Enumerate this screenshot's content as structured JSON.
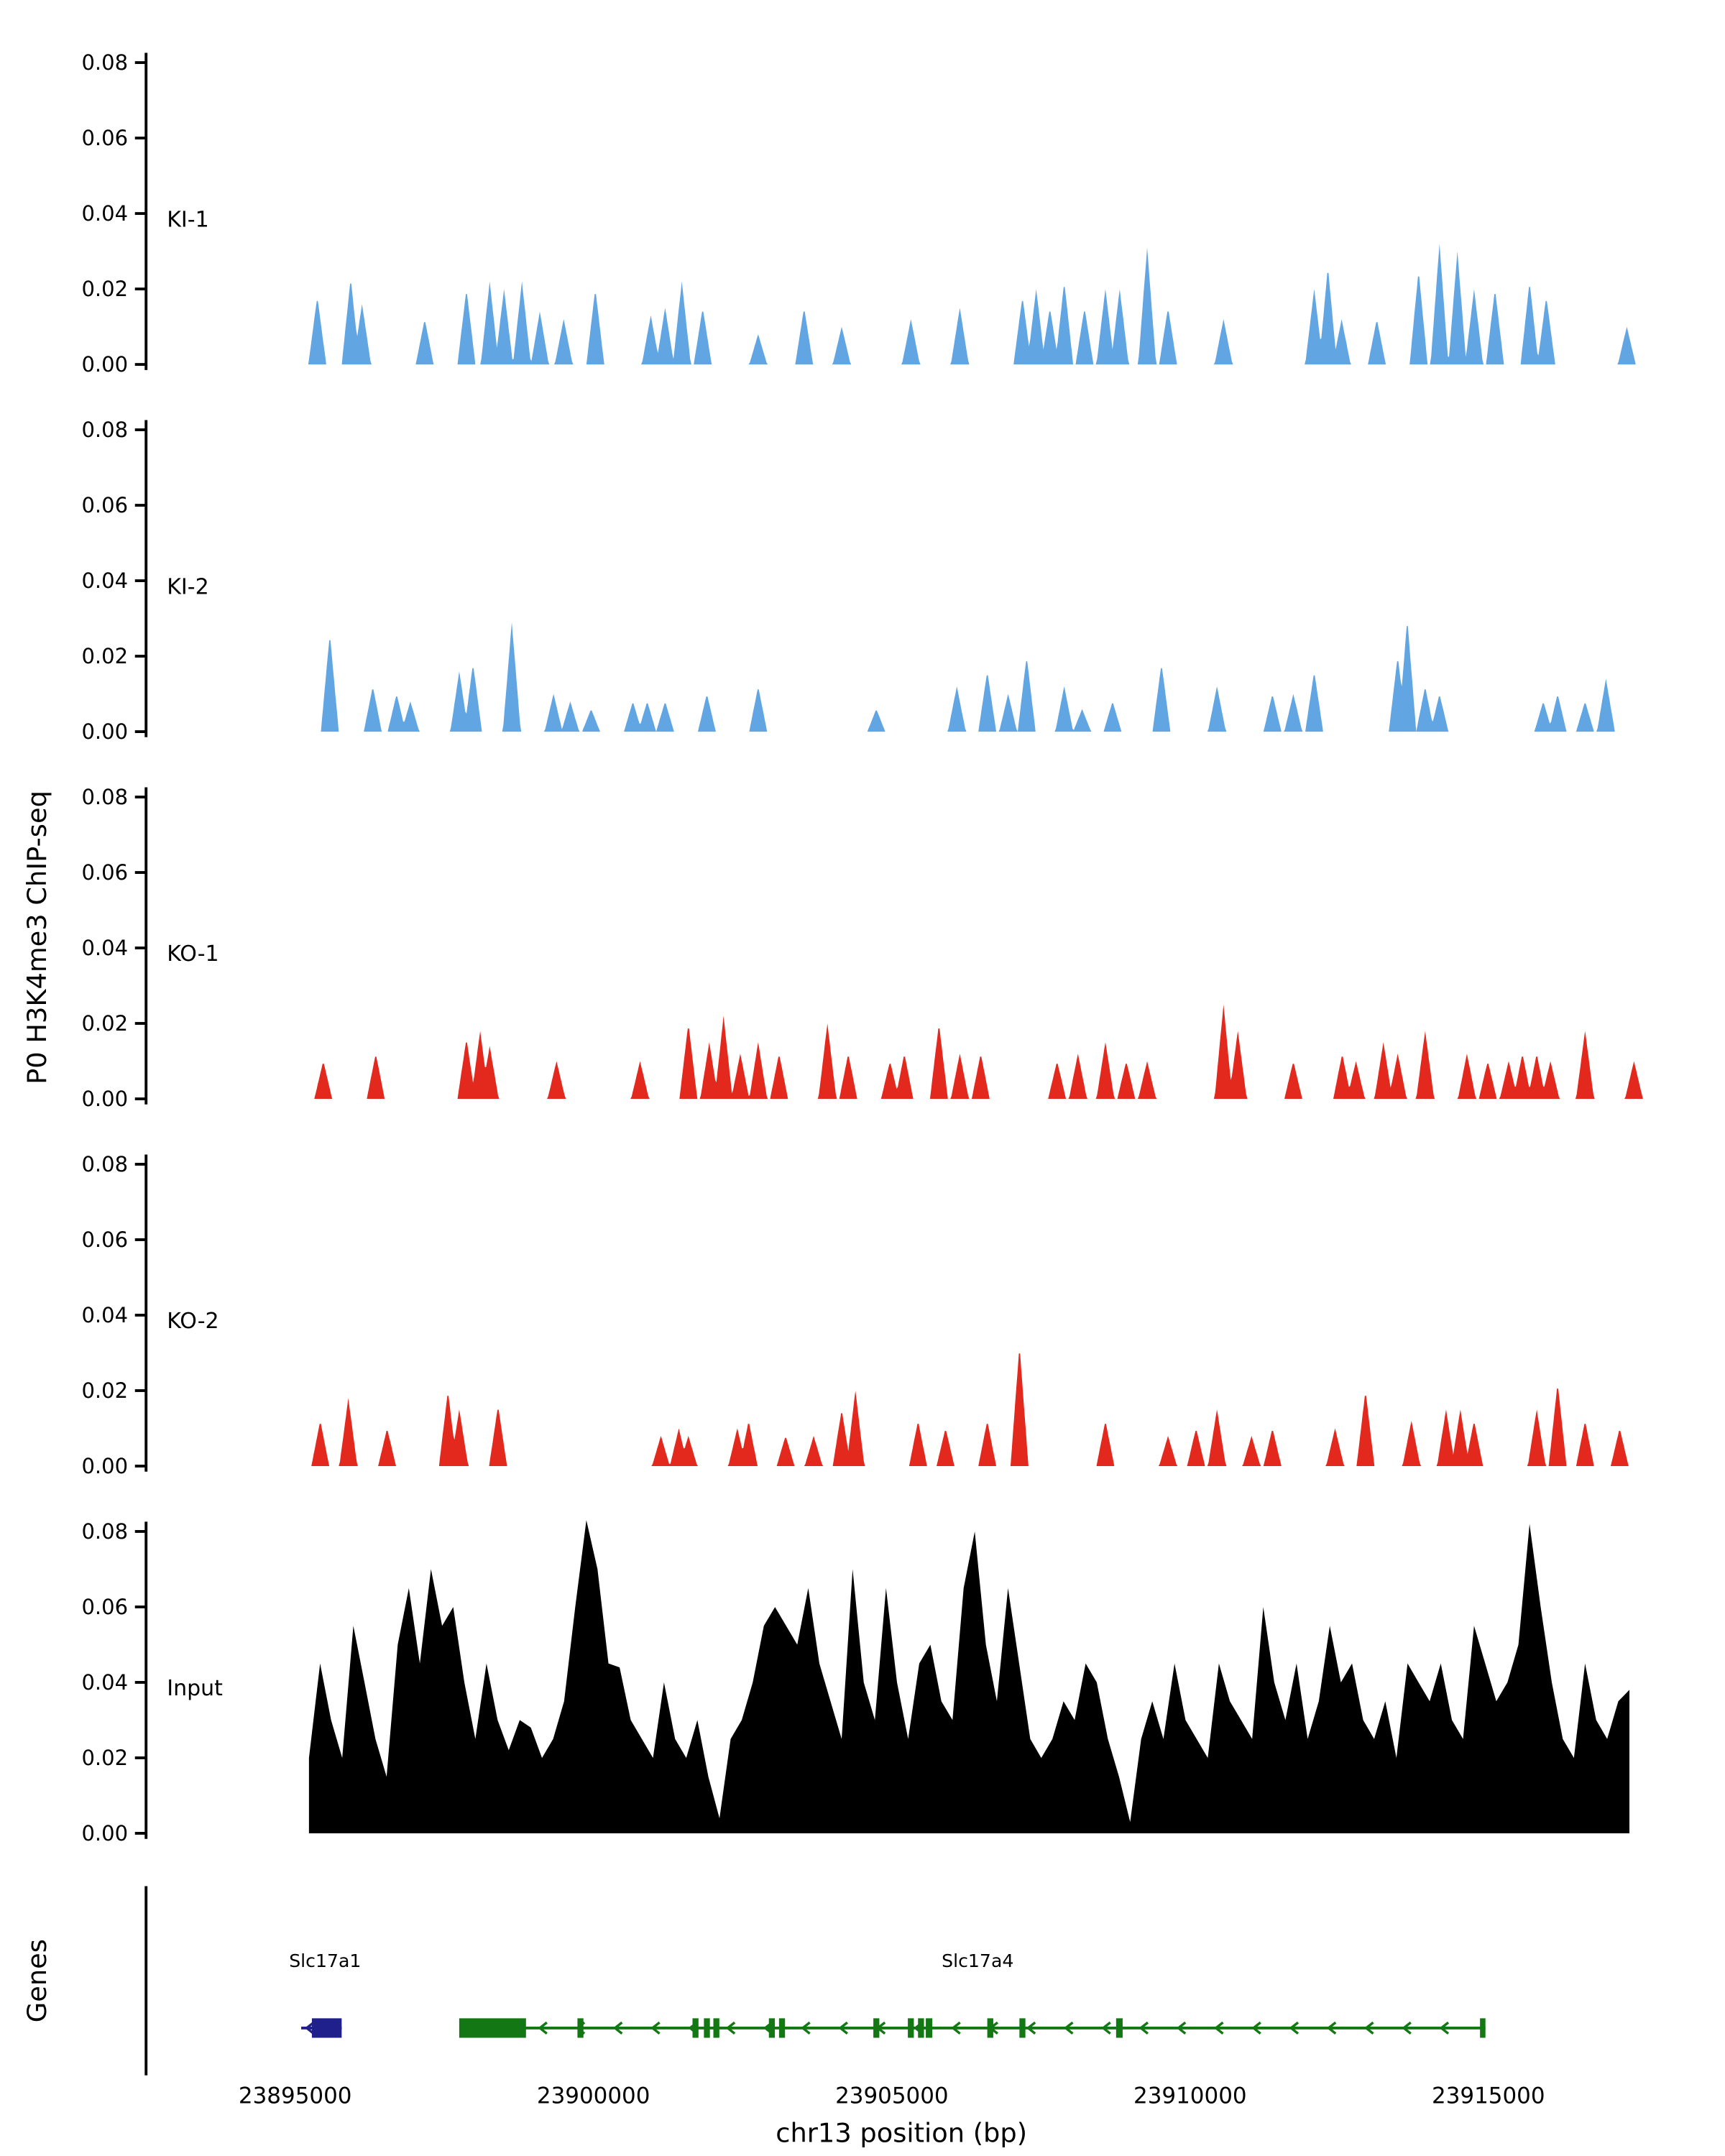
{
  "figure": {
    "y_axis_title": "P0 H3K4me3 ChIP-seq",
    "genes_axis_title": "Genes",
    "x_axis_title": "chr13 position (bp)"
  },
  "chart_data": {
    "type": "area",
    "xlim": [
      23892500,
      23917800
    ],
    "ylim": [
      0,
      0.085
    ],
    "y_ticks": [
      0,
      0.02,
      0.04,
      0.06,
      0.08
    ],
    "x_ticks": [
      23895000,
      23900000,
      23905000,
      23910000,
      23915000
    ],
    "tracks": [
      {
        "label": "KI-1",
        "color": "#61A5E3",
        "kind": "peaks",
        "peak_halfwidth_bp": 150,
        "peaks": [
          [
            23895370,
            0.018
          ],
          [
            23895930,
            0.023
          ],
          [
            23896120,
            0.016
          ],
          [
            23897170,
            0.012
          ],
          [
            23897870,
            0.02
          ],
          [
            23898260,
            0.022
          ],
          [
            23898500,
            0.02
          ],
          [
            23898800,
            0.022
          ],
          [
            23899100,
            0.014
          ],
          [
            23899500,
            0.012
          ],
          [
            23900030,
            0.02
          ],
          [
            23900960,
            0.013
          ],
          [
            23901200,
            0.015
          ],
          [
            23901480,
            0.022
          ],
          [
            23901830,
            0.015
          ],
          [
            23902760,
            0.008
          ],
          [
            23903530,
            0.015
          ],
          [
            23904160,
            0.01
          ],
          [
            23905320,
            0.012
          ],
          [
            23906140,
            0.015
          ],
          [
            23907190,
            0.018
          ],
          [
            23907420,
            0.02
          ],
          [
            23907650,
            0.015
          ],
          [
            23907890,
            0.022
          ],
          [
            23908230,
            0.015
          ],
          [
            23908580,
            0.02
          ],
          [
            23908820,
            0.02
          ],
          [
            23909280,
            0.031
          ],
          [
            23909630,
            0.015
          ],
          [
            23910560,
            0.012
          ],
          [
            23912080,
            0.02
          ],
          [
            23912310,
            0.026
          ],
          [
            23912540,
            0.012
          ],
          [
            23913130,
            0.012
          ],
          [
            23913830,
            0.025
          ],
          [
            23914180,
            0.032
          ],
          [
            23914480,
            0.03
          ],
          [
            23914760,
            0.02
          ],
          [
            23915110,
            0.02
          ],
          [
            23915690,
            0.022
          ],
          [
            23915970,
            0.018
          ],
          [
            23917320,
            0.01
          ]
        ]
      },
      {
        "label": "KI-2",
        "color": "#61A5E3",
        "kind": "peaks",
        "peak_halfwidth_bp": 150,
        "peaks": [
          [
            23895580,
            0.026
          ],
          [
            23896300,
            0.012
          ],
          [
            23896700,
            0.01
          ],
          [
            23896930,
            0.008
          ],
          [
            23897750,
            0.016
          ],
          [
            23897980,
            0.018
          ],
          [
            23898630,
            0.029
          ],
          [
            23899330,
            0.01
          ],
          [
            23899610,
            0.008
          ],
          [
            23899960,
            0.006
          ],
          [
            23900660,
            0.008
          ],
          [
            23900900,
            0.008
          ],
          [
            23901200,
            0.008
          ],
          [
            23901900,
            0.01
          ],
          [
            23902760,
            0.012
          ],
          [
            23904740,
            0.006
          ],
          [
            23906090,
            0.012
          ],
          [
            23906600,
            0.016
          ],
          [
            23906950,
            0.01
          ],
          [
            23907260,
            0.02
          ],
          [
            23907890,
            0.012
          ],
          [
            23908190,
            0.006
          ],
          [
            23908700,
            0.008
          ],
          [
            23909520,
            0.018
          ],
          [
            23910450,
            0.012
          ],
          [
            23911380,
            0.01
          ],
          [
            23911730,
            0.01
          ],
          [
            23912080,
            0.016
          ],
          [
            23913480,
            0.02
          ],
          [
            23913640,
            0.03
          ],
          [
            23913940,
            0.012
          ],
          [
            23914180,
            0.01
          ],
          [
            23915920,
            0.008
          ],
          [
            23916160,
            0.01
          ],
          [
            23916620,
            0.008
          ],
          [
            23916970,
            0.014
          ]
        ]
      },
      {
        "label": "KO-1",
        "color": "#E3281E",
        "kind": "peaks",
        "peak_halfwidth_bp": 150,
        "peaks": [
          [
            23895470,
            0.01
          ],
          [
            23896350,
            0.012
          ],
          [
            23897870,
            0.016
          ],
          [
            23898100,
            0.018
          ],
          [
            23898260,
            0.014
          ],
          [
            23899380,
            0.01
          ],
          [
            23900780,
            0.01
          ],
          [
            23901590,
            0.02
          ],
          [
            23901940,
            0.015
          ],
          [
            23902180,
            0.022
          ],
          [
            23902460,
            0.012
          ],
          [
            23902760,
            0.015
          ],
          [
            23903110,
            0.012
          ],
          [
            23903920,
            0.02
          ],
          [
            23904270,
            0.012
          ],
          [
            23904970,
            0.01
          ],
          [
            23905210,
            0.012
          ],
          [
            23905790,
            0.02
          ],
          [
            23906140,
            0.012
          ],
          [
            23906490,
            0.012
          ],
          [
            23907770,
            0.01
          ],
          [
            23908120,
            0.012
          ],
          [
            23908580,
            0.015
          ],
          [
            23908930,
            0.01
          ],
          [
            23909280,
            0.01
          ],
          [
            23910560,
            0.025
          ],
          [
            23910800,
            0.018
          ],
          [
            23911730,
            0.01
          ],
          [
            23912550,
            0.012
          ],
          [
            23912780,
            0.01
          ],
          [
            23913240,
            0.015
          ],
          [
            23913480,
            0.012
          ],
          [
            23913940,
            0.018
          ],
          [
            23914640,
            0.012
          ],
          [
            23914990,
            0.01
          ],
          [
            23915340,
            0.01
          ],
          [
            23915570,
            0.012
          ],
          [
            23915810,
            0.012
          ],
          [
            23916040,
            0.01
          ],
          [
            23916620,
            0.018
          ],
          [
            23917440,
            0.01
          ]
        ]
      },
      {
        "label": "KO-2",
        "color": "#E3281E",
        "kind": "peaks",
        "peak_halfwidth_bp": 150,
        "peaks": [
          [
            23895420,
            0.012
          ],
          [
            23895890,
            0.018
          ],
          [
            23896540,
            0.01
          ],
          [
            23897560,
            0.02
          ],
          [
            23897750,
            0.015
          ],
          [
            23898400,
            0.016
          ],
          [
            23901130,
            0.008
          ],
          [
            23901430,
            0.01
          ],
          [
            23901590,
            0.008
          ],
          [
            23902410,
            0.01
          ],
          [
            23902600,
            0.012
          ],
          [
            23903220,
            0.008
          ],
          [
            23903690,
            0.008
          ],
          [
            23904160,
            0.015
          ],
          [
            23904390,
            0.02
          ],
          [
            23905440,
            0.012
          ],
          [
            23905900,
            0.01
          ],
          [
            23906600,
            0.012
          ],
          [
            23907140,
            0.032
          ],
          [
            23908580,
            0.012
          ],
          [
            23909630,
            0.008
          ],
          [
            23910100,
            0.01
          ],
          [
            23910450,
            0.015
          ],
          [
            23911030,
            0.008
          ],
          [
            23911380,
            0.01
          ],
          [
            23912430,
            0.01
          ],
          [
            23912940,
            0.02
          ],
          [
            23913710,
            0.012
          ],
          [
            23914290,
            0.015
          ],
          [
            23914530,
            0.015
          ],
          [
            23914760,
            0.012
          ],
          [
            23915810,
            0.015
          ],
          [
            23916160,
            0.022
          ],
          [
            23916620,
            0.012
          ],
          [
            23917200,
            0.01
          ]
        ]
      },
      {
        "label": "Input",
        "color": "#000000",
        "kind": "samples",
        "sample_start_bp": 23895230,
        "sample_step_bp": 186,
        "values": [
          0.02,
          0.045,
          0.03,
          0.02,
          0.055,
          0.04,
          0.025,
          0.015,
          0.05,
          0.065,
          0.045,
          0.07,
          0.055,
          0.06,
          0.04,
          0.025,
          0.045,
          0.03,
          0.022,
          0.03,
          0.028,
          0.02,
          0.025,
          0.035,
          0.06,
          0.083,
          0.07,
          0.045,
          0.044,
          0.03,
          0.025,
          0.02,
          0.04,
          0.025,
          0.02,
          0.03,
          0.015,
          0.004,
          0.025,
          0.03,
          0.04,
          0.055,
          0.06,
          0.055,
          0.05,
          0.065,
          0.045,
          0.035,
          0.025,
          0.07,
          0.04,
          0.03,
          0.065,
          0.04,
          0.025,
          0.045,
          0.05,
          0.035,
          0.03,
          0.065,
          0.08,
          0.05,
          0.035,
          0.065,
          0.045,
          0.025,
          0.02,
          0.025,
          0.035,
          0.03,
          0.045,
          0.04,
          0.025,
          0.015,
          0.003,
          0.025,
          0.035,
          0.025,
          0.045,
          0.03,
          0.025,
          0.02,
          0.045,
          0.035,
          0.03,
          0.025,
          0.06,
          0.04,
          0.03,
          0.045,
          0.025,
          0.035,
          0.055,
          0.04,
          0.045,
          0.03,
          0.025,
          0.035,
          0.02,
          0.045,
          0.04,
          0.035,
          0.045,
          0.03,
          0.025,
          0.055,
          0.045,
          0.035,
          0.04,
          0.05,
          0.082,
          0.06,
          0.04,
          0.025,
          0.02,
          0.045,
          0.03,
          0.025,
          0.035,
          0.038
        ]
      }
    ],
    "genes": [
      {
        "name": "Slc17a1",
        "color": "#20208C",
        "strand": "-",
        "start": 23895100,
        "end": 23895780,
        "label_bp": 23895500,
        "exons": [
          [
            23895280,
            23895780
          ]
        ]
      },
      {
        "name": "Slc17a4",
        "color": "#137813",
        "strand": "-",
        "start": 23897750,
        "end": 23914950,
        "label_bp": 23906440,
        "exons": [
          [
            23897750,
            23898870
          ],
          [
            23899730,
            23899830
          ],
          [
            23901660,
            23901760
          ],
          [
            23901850,
            23901950
          ],
          [
            23902010,
            23902110
          ],
          [
            23902940,
            23903040
          ],
          [
            23903110,
            23903210
          ],
          [
            23904690,
            23904790
          ],
          [
            23905270,
            23905370
          ],
          [
            23905440,
            23905540
          ],
          [
            23905570,
            23905680
          ],
          [
            23906600,
            23906700
          ],
          [
            23907140,
            23907240
          ],
          [
            23908760,
            23908870
          ],
          [
            23914860,
            23914950
          ]
        ]
      }
    ]
  }
}
